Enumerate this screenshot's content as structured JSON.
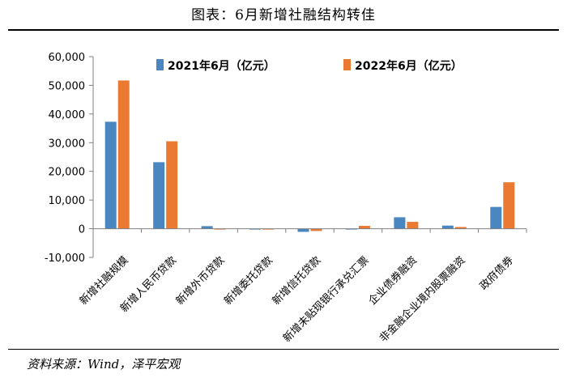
{
  "title": "图表：6月新增社融结构转佳",
  "source": "资料来源：Wind，泽平宏观",
  "colors": {
    "series_2021": "#4a86c0",
    "series_2022": "#ea7a32"
  },
  "chart_data": {
    "type": "bar",
    "categories": [
      "新增社融规模",
      "新增人民币贷款",
      "新增外币贷款",
      "新增委托贷款",
      "新增信托贷款",
      "新增未贴现银行承兑汇票",
      "企业债券融资",
      "非金融企业境内股票融资",
      "政府债券"
    ],
    "series": [
      {
        "name": "2021年6月（亿元）",
        "values": [
          37300,
          23200,
          900,
          -300,
          -1100,
          -300,
          4000,
          1100,
          7600
        ]
      },
      {
        "name": "2022年6月（亿元）",
        "values": [
          51700,
          30500,
          -300,
          -300,
          -800,
          1000,
          2400,
          600,
          16200
        ]
      }
    ],
    "yticks": [
      "60,000",
      "50,000",
      "40,000",
      "30,000",
      "20,000",
      "10,000",
      "0",
      "-10,000"
    ],
    "ylim": [
      -10000,
      60000
    ],
    "legend_position": "top"
  }
}
